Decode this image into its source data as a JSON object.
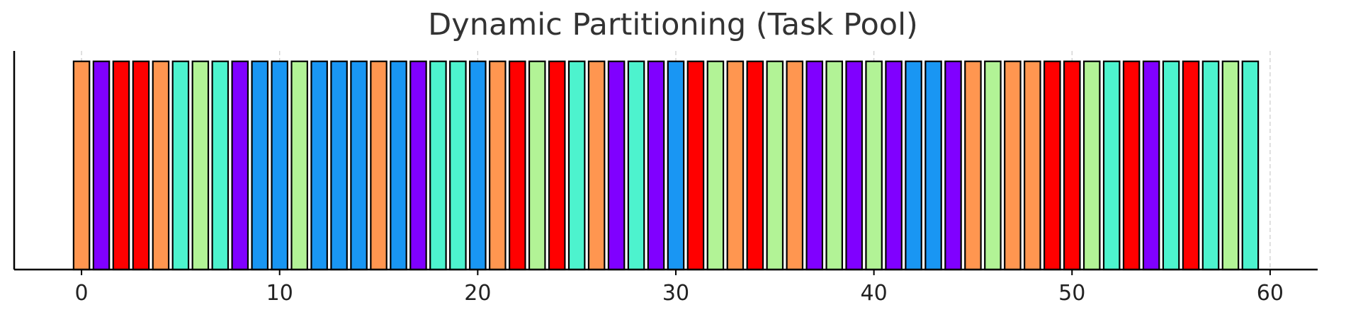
{
  "chart_data": {
    "type": "bar",
    "title": "Dynamic Partitioning (Task Pool)",
    "xlabel": "",
    "ylabel": "",
    "xlim": [
      -3.4,
      62.4
    ],
    "ylim": [
      0,
      1.05
    ],
    "xticks": [
      0,
      10,
      20,
      30,
      40,
      50,
      60
    ],
    "x_grid": true,
    "y_axis_tick_labels": false,
    "bar_width": 0.8,
    "bar_height": 1,
    "x": [
      0,
      1,
      2,
      3,
      4,
      5,
      6,
      7,
      8,
      9,
      10,
      11,
      12,
      13,
      14,
      15,
      16,
      17,
      18,
      19,
      20,
      21,
      22,
      23,
      24,
      25,
      26,
      27,
      28,
      29,
      30,
      31,
      32,
      33,
      34,
      35,
      36,
      37,
      38,
      39,
      40,
      41,
      42,
      43,
      44,
      45,
      46,
      47,
      48,
      49,
      50,
      51,
      52,
      53,
      54,
      55,
      56,
      57,
      58,
      59
    ],
    "values": [
      1,
      1,
      1,
      1,
      1,
      1,
      1,
      1,
      1,
      1,
      1,
      1,
      1,
      1,
      1,
      1,
      1,
      1,
      1,
      1,
      1,
      1,
      1,
      1,
      1,
      1,
      1,
      1,
      1,
      1,
      1,
      1,
      1,
      1,
      1,
      1,
      1,
      1,
      1,
      1,
      1,
      1,
      1,
      1,
      1,
      1,
      1,
      1,
      1,
      1,
      1,
      1,
      1,
      1,
      1,
      1,
      1,
      1,
      1,
      1
    ],
    "color_groups": [
      "orange",
      "purple",
      "red",
      "red",
      "orange",
      "cyan",
      "lightgreen",
      "cyan",
      "purple",
      "blue",
      "blue",
      "lightgreen",
      "blue",
      "blue",
      "blue",
      "orange",
      "blue",
      "purple",
      "cyan",
      "cyan",
      "blue",
      "orange",
      "red",
      "lightgreen",
      "red",
      "cyan",
      "orange",
      "purple",
      "cyan",
      "purple",
      "blue",
      "red",
      "lightgreen",
      "orange",
      "red",
      "lightgreen",
      "orange",
      "purple",
      "lightgreen",
      "purple",
      "lightgreen",
      "purple",
      "blue",
      "blue",
      "purple",
      "orange",
      "lightgreen",
      "orange",
      "orange",
      "red",
      "red",
      "lightgreen",
      "cyan",
      "red",
      "purple",
      "cyan",
      "red",
      "cyan",
      "lightgreen",
      "cyan"
    ],
    "palette": {
      "orange": "#ff9650",
      "purple": "#8000ff",
      "red": "#ff0000",
      "cyan": "#4df3ce",
      "lightgreen": "#b2f396",
      "blue": "#1996f3"
    },
    "edge_color": "#000000",
    "grid_color": "#cccccc"
  }
}
